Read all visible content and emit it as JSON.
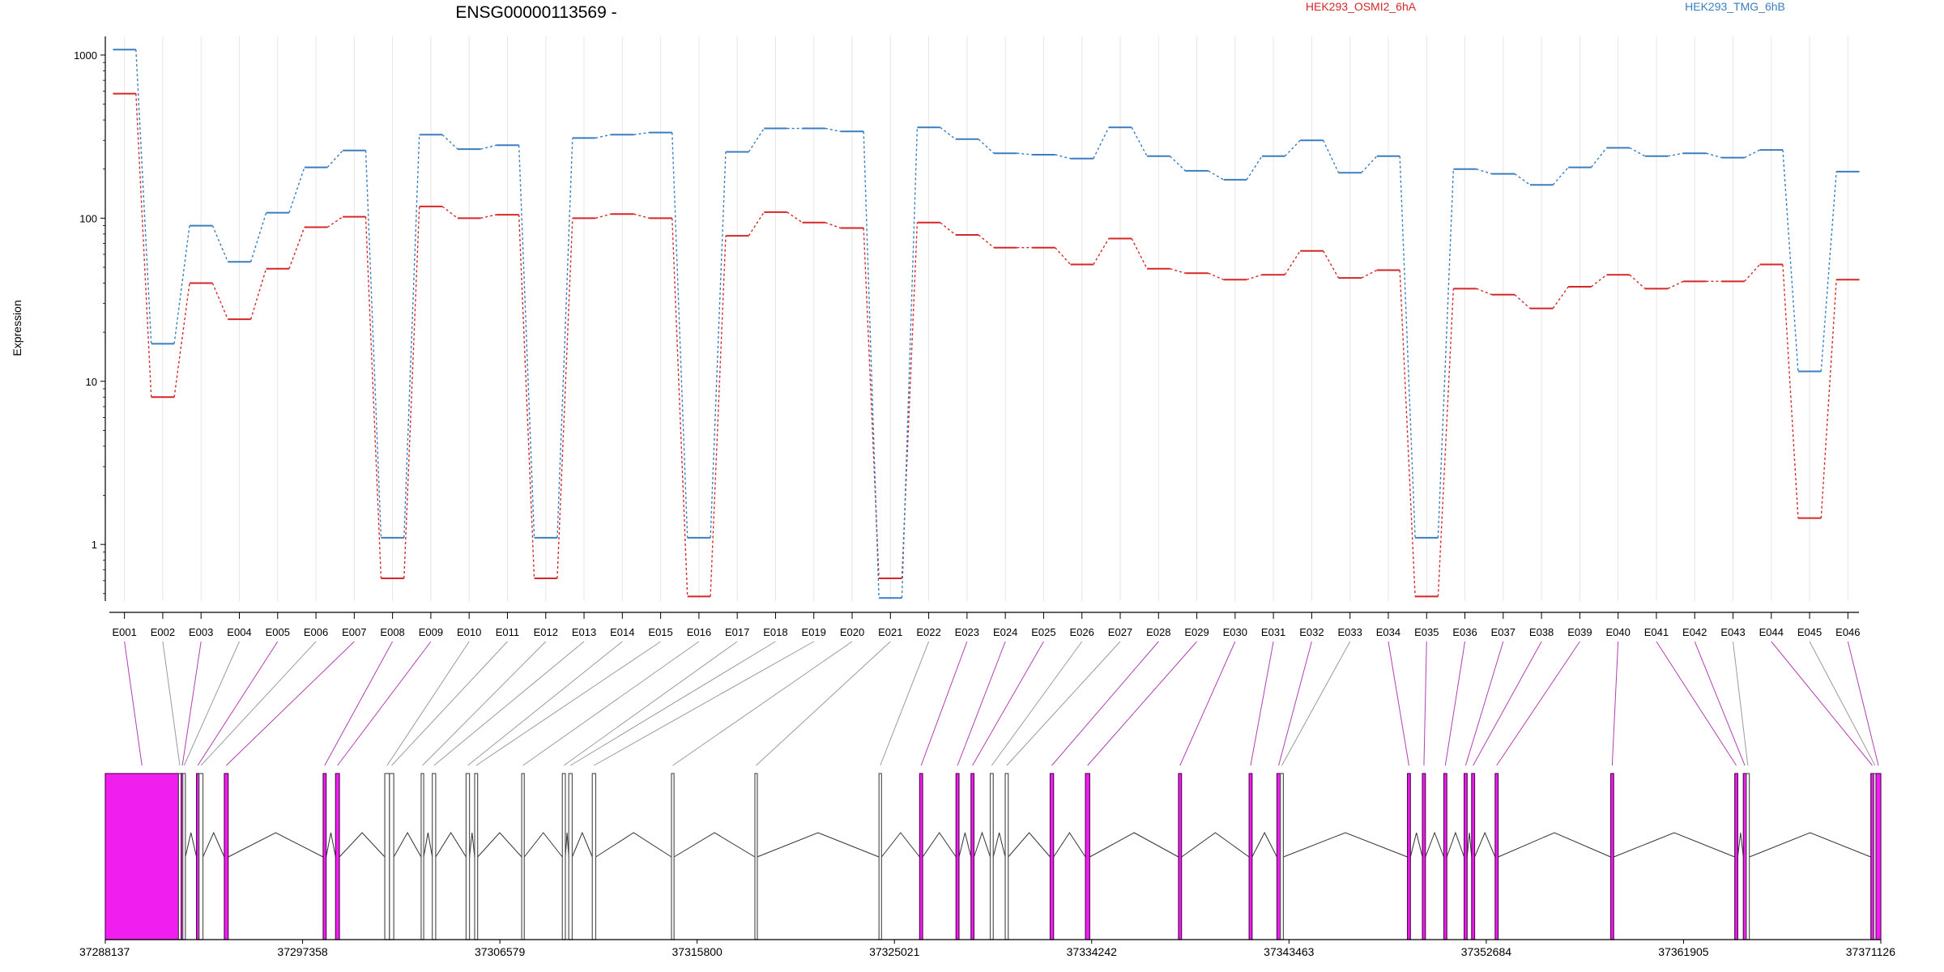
{
  "chart_data": {
    "type": "line",
    "title": "ENSG00000113569 -",
    "xlabel": "",
    "ylabel": "Expression",
    "yscale": "log",
    "ylim": [
      0.45,
      1300
    ],
    "yticks": [
      1,
      10,
      100,
      1000
    ],
    "ytick_labels": [
      "1",
      "10",
      "100",
      "1000"
    ],
    "grid": "vertical, light",
    "legend_position": "top",
    "categories": [
      "E001",
      "E002",
      "E003",
      "E004",
      "E005",
      "E006",
      "E007",
      "E008",
      "E009",
      "E010",
      "E011",
      "E012",
      "E013",
      "E014",
      "E015",
      "E016",
      "E017",
      "E018",
      "E019",
      "E020",
      "E021",
      "E022",
      "E023",
      "E024",
      "E025",
      "E026",
      "E027",
      "E028",
      "E029",
      "E030",
      "E031",
      "E032",
      "E033",
      "E034",
      "E035",
      "E036",
      "E037",
      "E038",
      "E039",
      "E040",
      "E041",
      "E042",
      "E043",
      "E044",
      "E045",
      "E046"
    ],
    "series": [
      {
        "name": "HEK293_OSMI2_6hA",
        "color": "#d62728",
        "values": [
          580,
          8,
          40,
          24,
          49,
          88,
          102,
          0.62,
          118,
          100,
          105,
          0.62,
          100,
          106,
          100,
          0.48,
          78,
          109,
          94,
          87,
          0.62,
          94,
          79,
          66,
          66,
          52,
          75,
          49,
          46,
          42,
          45,
          63,
          43,
          48,
          0.48,
          37,
          34,
          28,
          38,
          45,
          37,
          41,
          41,
          52,
          1.45,
          42
        ]
      },
      {
        "name": "HEK293_TMG_6hB",
        "color": "#3a7dc0",
        "values": [
          1080,
          17,
          90,
          54,
          108,
          205,
          260,
          1.1,
          325,
          265,
          280,
          1.1,
          310,
          325,
          335,
          1.1,
          255,
          355,
          355,
          340,
          0.47,
          360,
          305,
          250,
          245,
          232,
          360,
          240,
          195,
          172,
          240,
          300,
          190,
          240,
          1.1,
          200,
          187,
          160,
          205,
          270,
          240,
          250,
          235,
          262,
          11.5,
          193
        ]
      }
    ],
    "gene_model": {
      "coordinate_ticks": [
        "37288137",
        "37297358",
        "37306579",
        "37315800",
        "37325021",
        "37334242",
        "37343463",
        "37352684",
        "37361905",
        "37371126"
      ],
      "genomic_range": [
        37288137,
        37371126
      ],
      "exon_color_highlight": "#f01ff0",
      "exon_color_plain": "#ffffff",
      "exons": [
        {
          "id": "E001",
          "start": 37288137,
          "end": 37291560,
          "highlight": true
        },
        {
          "id": "E002",
          "start": 37291560,
          "end": 37291680,
          "highlight": false
        },
        {
          "id": "E003",
          "start": 37291680,
          "end": 37291760,
          "highlight": true
        },
        {
          "id": "E004",
          "start": 37291760,
          "end": 37291880,
          "highlight": false
        },
        {
          "id": "E005",
          "start": 37292400,
          "end": 37292520,
          "highlight": true
        },
        {
          "id": "E006",
          "start": 37292520,
          "end": 37292700,
          "highlight": false
        },
        {
          "id": "E007",
          "start": 37293700,
          "end": 37293880,
          "highlight": true
        },
        {
          "id": "E008",
          "start": 37298320,
          "end": 37298460,
          "highlight": true
        },
        {
          "id": "E009",
          "start": 37298900,
          "end": 37299080,
          "highlight": true
        },
        {
          "id": "E010",
          "start": 37301200,
          "end": 37301420,
          "highlight": false
        },
        {
          "id": "E011",
          "start": 37301420,
          "end": 37301620,
          "highlight": false
        },
        {
          "id": "E012",
          "start": 37302900,
          "end": 37303020,
          "highlight": false
        },
        {
          "id": "E013",
          "start": 37303420,
          "end": 37303580,
          "highlight": false
        },
        {
          "id": "E014",
          "start": 37305000,
          "end": 37305160,
          "highlight": false
        },
        {
          "id": "E015",
          "start": 37305400,
          "end": 37305540,
          "highlight": false
        },
        {
          "id": "E016",
          "start": 37307600,
          "end": 37307720,
          "highlight": false
        },
        {
          "id": "E017",
          "start": 37309500,
          "end": 37309640,
          "highlight": false
        },
        {
          "id": "E018",
          "start": 37309800,
          "end": 37309960,
          "highlight": false
        },
        {
          "id": "E019",
          "start": 37310900,
          "end": 37311060,
          "highlight": false
        },
        {
          "id": "E020",
          "start": 37314600,
          "end": 37314720,
          "highlight": false
        },
        {
          "id": "E021",
          "start": 37318500,
          "end": 37318600,
          "highlight": false
        },
        {
          "id": "E022",
          "start": 37324300,
          "end": 37324420,
          "highlight": false
        },
        {
          "id": "E023",
          "start": 37326200,
          "end": 37326340,
          "highlight": true
        },
        {
          "id": "E024",
          "start": 37327900,
          "end": 37328040,
          "highlight": true
        },
        {
          "id": "E025",
          "start": 37328600,
          "end": 37328740,
          "highlight": true
        },
        {
          "id": "E026",
          "start": 37329500,
          "end": 37329640,
          "highlight": false
        },
        {
          "id": "E027",
          "start": 37330200,
          "end": 37330340,
          "highlight": false
        },
        {
          "id": "E028",
          "start": 37332300,
          "end": 37332460,
          "highlight": true
        },
        {
          "id": "E029",
          "start": 37333950,
          "end": 37334150,
          "highlight": true
        },
        {
          "id": "E030",
          "start": 37338300,
          "end": 37338440,
          "highlight": true
        },
        {
          "id": "E031",
          "start": 37341600,
          "end": 37341740,
          "highlight": true
        },
        {
          "id": "E032",
          "start": 37342900,
          "end": 37343060,
          "highlight": true
        },
        {
          "id": "E033",
          "start": 37343060,
          "end": 37343200,
          "highlight": false
        },
        {
          "id": "E034",
          "start": 37349000,
          "end": 37349140,
          "highlight": true
        },
        {
          "id": "E035",
          "start": 37349700,
          "end": 37349840,
          "highlight": true
        },
        {
          "id": "E036",
          "start": 37350700,
          "end": 37350840,
          "highlight": true
        },
        {
          "id": "E037",
          "start": 37351650,
          "end": 37351790,
          "highlight": true
        },
        {
          "id": "E038",
          "start": 37352000,
          "end": 37352140,
          "highlight": true
        },
        {
          "id": "E039",
          "start": 37353100,
          "end": 37353240,
          "highlight": true
        },
        {
          "id": "E040",
          "start": 37358500,
          "end": 37358640,
          "highlight": true
        },
        {
          "id": "E041",
          "start": 37364300,
          "end": 37364440,
          "highlight": true
        },
        {
          "id": "E042",
          "start": 37364700,
          "end": 37364840,
          "highlight": true
        },
        {
          "id": "E043",
          "start": 37364840,
          "end": 37364980,
          "highlight": false
        },
        {
          "id": "E044",
          "start": 37370660,
          "end": 37370800,
          "highlight": true
        },
        {
          "id": "E045",
          "start": 37370800,
          "end": 37370900,
          "highlight": false
        },
        {
          "id": "E046",
          "start": 37370900,
          "end": 37371126,
          "highlight": true
        }
      ]
    }
  }
}
